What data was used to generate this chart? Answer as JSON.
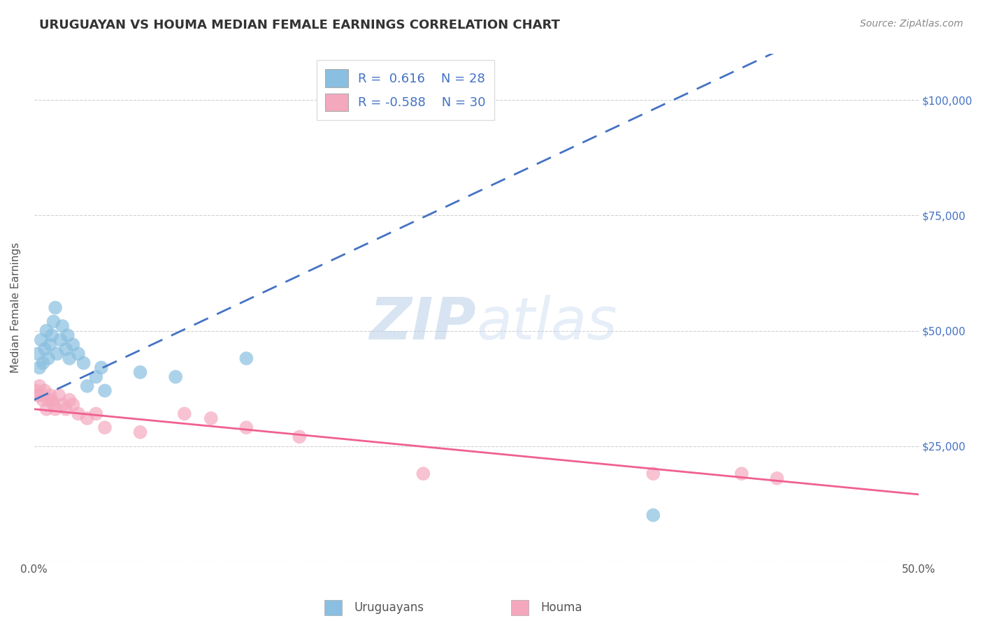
{
  "title": "URUGUAYAN VS HOUMA MEDIAN FEMALE EARNINGS CORRELATION CHART",
  "source": "Source: ZipAtlas.com",
  "ylabel": "Median Female Earnings",
  "xlim": [
    0.0,
    0.5
  ],
  "ylim": [
    0,
    110000
  ],
  "xticks": [
    0.0,
    0.05,
    0.1,
    0.15,
    0.2,
    0.25,
    0.3,
    0.35,
    0.4,
    0.45,
    0.5
  ],
  "xtick_labels": [
    "0.0%",
    "",
    "",
    "",
    "",
    "",
    "",
    "",
    "",
    "",
    "50.0%"
  ],
  "ytick_values": [
    0,
    25000,
    50000,
    75000,
    100000
  ],
  "ytick_labels": [
    "",
    "$25,000",
    "$50,000",
    "$75,000",
    "$100,000"
  ],
  "uruguayan_color": "#89bfe0",
  "houma_color": "#f4a8be",
  "trend_uruguayan_color": "#4472c4",
  "trend_houma_color": "#f06090",
  "background_color": "#ffffff",
  "grid_color": "#cccccc",
  "watermark_zip": "ZIP",
  "watermark_atlas": "atlas",
  "uruguayan_x": [
    0.002,
    0.003,
    0.004,
    0.005,
    0.006,
    0.007,
    0.008,
    0.009,
    0.01,
    0.011,
    0.012,
    0.013,
    0.015,
    0.016,
    0.018,
    0.019,
    0.02,
    0.022,
    0.025,
    0.028,
    0.03,
    0.035,
    0.038,
    0.04,
    0.06,
    0.08,
    0.12,
    0.35
  ],
  "uruguayan_y": [
    45000,
    42000,
    48000,
    43000,
    46000,
    50000,
    44000,
    47000,
    49000,
    52000,
    55000,
    45000,
    48000,
    51000,
    46000,
    49000,
    44000,
    47000,
    45000,
    43000,
    38000,
    40000,
    42000,
    37000,
    41000,
    40000,
    44000,
    10000
  ],
  "houma_x": [
    0.001,
    0.002,
    0.003,
    0.004,
    0.005,
    0.006,
    0.007,
    0.008,
    0.009,
    0.01,
    0.011,
    0.012,
    0.014,
    0.016,
    0.018,
    0.02,
    0.022,
    0.025,
    0.03,
    0.035,
    0.04,
    0.06,
    0.085,
    0.1,
    0.12,
    0.15,
    0.22,
    0.35,
    0.4,
    0.42
  ],
  "houma_y": [
    37000,
    36000,
    38000,
    36000,
    35000,
    37000,
    33000,
    35000,
    36000,
    35000,
    34000,
    33000,
    36000,
    34000,
    33000,
    35000,
    34000,
    32000,
    31000,
    32000,
    29000,
    28000,
    32000,
    31000,
    29000,
    27000,
    19000,
    19000,
    19000,
    18000
  ],
  "trend_uruguayan_slope": 180000,
  "trend_uruguayan_intercept": 35000,
  "trend_houma_slope": -37000,
  "trend_houma_intercept": 33000
}
